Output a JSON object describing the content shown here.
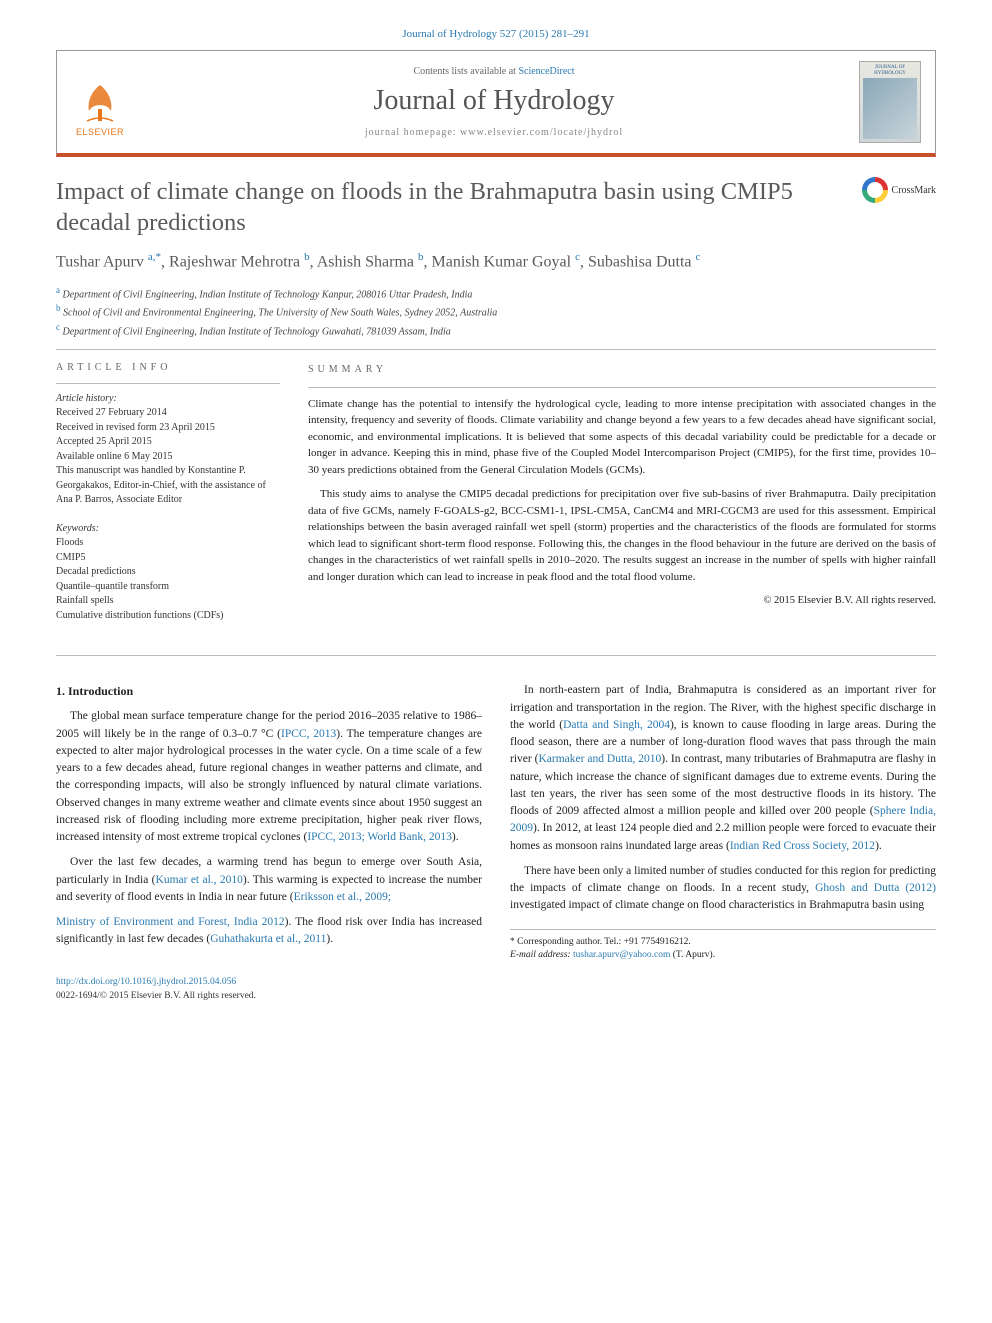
{
  "journal_ref": {
    "prefix": "Journal of Hydrology 527 (2015) 281–291",
    "link_text": "Journal of Hydrology 527 (2015) 281–291"
  },
  "header": {
    "contents_prefix": "Contents lists available at ",
    "contents_link": "ScienceDirect",
    "journal_name": "Journal of Hydrology",
    "homepage_prefix": "journal homepage: ",
    "homepage_url": "www.elsevier.com/locate/jhydrol",
    "elsevier_label": "ELSEVIER",
    "cover_title": "JOURNAL OF HYDROLOGY"
  },
  "crossmark_label": "CrossMark",
  "title": "Impact of climate change on floods in the Brahmaputra basin using CMIP5 decadal predictions",
  "authors_html": "Tushar Apurv <span class='sup'>a,*</span>, Rajeshwar Mehrotra <span class='sup'>b</span>, Ashish Sharma <span class='sup'>b</span>, Manish Kumar Goyal <span class='sup'>c</span>, Subashisa Dutta <span class='sup'>c</span>",
  "affiliations": [
    {
      "sup": "a",
      "text": "Department of Civil Engineering, Indian Institute of Technology Kanpur, 208016 Uttar Pradesh, India"
    },
    {
      "sup": "b",
      "text": "School of Civil and Environmental Engineering, The University of New South Wales, Sydney 2052, Australia"
    },
    {
      "sup": "c",
      "text": "Department of Civil Engineering, Indian Institute of Technology Guwahati, 781039 Assam, India"
    }
  ],
  "article_info": {
    "heading": "article info",
    "history_label": "Article history:",
    "history": [
      "Received 27 February 2014",
      "Received in revised form 23 April 2015",
      "Accepted 25 April 2015",
      "Available online 6 May 2015",
      "This manuscript was handled by Konstantine P. Georgakakos, Editor-in-Chief, with the assistance of Ana P. Barros, Associate Editor"
    ],
    "keywords_label": "Keywords:",
    "keywords": [
      "Floods",
      "CMIP5",
      "Decadal predictions",
      "Quantile–quantile transform",
      "Rainfall spells",
      "Cumulative distribution functions (CDFs)"
    ]
  },
  "summary": {
    "heading": "summary",
    "paragraphs": [
      "Climate change has the potential to intensify the hydrological cycle, leading to more intense precipitation with associated changes in the intensity, frequency and severity of floods. Climate variability and change beyond a few years to a few decades ahead have significant social, economic, and environmental implications. It is believed that some aspects of this decadal variability could be predictable for a decade or longer in advance. Keeping this in mind, phase five of the Coupled Model Intercomparison Project (CMIP5), for the first time, provides 10–30 years predictions obtained from the General Circulation Models (GCMs).",
      "This study aims to analyse the CMIP5 decadal predictions for precipitation over five sub-basins of river Brahmaputra. Daily precipitation data of five GCMs, namely F-GOALS-g2, BCC-CSM1-1, IPSL-CM5A, CanCM4 and MRI-CGCM3 are used for this assessment. Empirical relationships between the basin averaged rainfall wet spell (storm) properties and the characteristics of the floods are formulated for storms which lead to significant short-term flood response. Following this, the changes in the flood behaviour in the future are derived on the basis of changes in the characteristics of wet rainfall spells in 2010–2020. The results suggest an increase in the number of spells with higher rainfall and longer duration which can lead to increase in peak flood and the total flood volume."
    ],
    "copyright": "© 2015 Elsevier B.V. All rights reserved."
  },
  "section1": {
    "heading": "1. Introduction",
    "paragraphs": [
      "The global mean surface temperature change for the period 2016–2035 relative to 1986–2005 will likely be in the range of 0.3–0.7 °C (<span class='cite'>IPCC, 2013</span>). The temperature changes are expected to alter major hydrological processes in the water cycle. On a time scale of a few years to a few decades ahead, future regional changes in weather patterns and climate, and the corresponding impacts, will also be strongly influenced by natural climate variations. Observed changes in many extreme weather and climate events since about 1950 suggest an increased risk of flooding including more extreme precipitation, higher peak river flows, increased intensity of most extreme tropical cyclones (<span class='cite'>IPCC, 2013; World Bank, 2013</span>).",
      "Over the last few decades, a warming trend has begun to emerge over South Asia, particularly in India (<span class='cite'>Kumar et al., 2010</span>). This warming is expected to increase the number and severity of flood events in India in near future (<span class='cite'>Eriksson et al., 2009;</span>",
      "<span class='cite'>Ministry of Environment and Forest, India 2012</span>). The flood risk over India has increased significantly in last few decades (<span class='cite'>Guhathakurta et al., 2011</span>).",
      "In north-eastern part of India, Brahmaputra is considered as an important river for irrigation and transportation in the region. The River, with the highest specific discharge in the world (<span class='cite'>Datta and Singh, 2004</span>), is known to cause flooding in large areas. During the flood season, there are a number of long-duration flood waves that pass through the main river (<span class='cite'>Karmaker and Dutta, 2010</span>). In contrast, many tributaries of Brahmaputra are flashy in nature, which increase the chance of significant damages due to extreme events. During the last ten years, the river has seen some of the most destructive floods in its history. The floods of 2009 affected almost a million people and killed over 200 people (<span class='cite'>Sphere India, 2009</span>). In 2012, at least 124 people died and 2.2 million people were forced to evacuate their homes as monsoon rains inundated large areas (<span class='cite'>Indian Red Cross Society, 2012</span>).",
      "There have been only a limited number of studies conducted for this region for predicting the impacts of climate change on floods. In a recent study, <span class='cite'>Ghosh and Dutta (2012)</span> investigated impact of climate change on flood characteristics in Brahmaputra basin using"
    ]
  },
  "footnote": {
    "corresponding": "* Corresponding author. Tel.: +91 7754916212.",
    "email_label": "E-mail address:",
    "email": "tushar.apurv@yahoo.com",
    "email_suffix": "(T. Apurv)."
  },
  "bottom": {
    "doi_url": "http://dx.doi.org/10.1016/j.jhydrol.2015.04.056",
    "issn_line": "0022-1694/© 2015 Elsevier B.V. All rights reserved."
  },
  "colors": {
    "link": "#2a7ab0",
    "rule": "#c94f2a"
  }
}
